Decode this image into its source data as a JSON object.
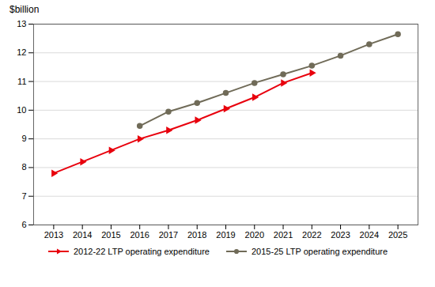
{
  "chart_data": {
    "type": "line",
    "ylabel": "$billion",
    "series": [
      {
        "name": "2012-22 LTP operating expenditure",
        "color": "#e8000d",
        "marker": "triangle-right",
        "x": [
          2013,
          2014,
          2015,
          2016,
          2017,
          2018,
          2019,
          2020,
          2021,
          2022
        ],
        "values": [
          7.8,
          8.2,
          8.6,
          9.0,
          9.3,
          9.65,
          10.05,
          10.45,
          10.95,
          11.3
        ]
      },
      {
        "name": "2015-25 LTP operating expenditure",
        "color": "#706b58",
        "marker": "circle",
        "x": [
          2016,
          2017,
          2018,
          2019,
          2020,
          2021,
          2022,
          2023,
          2024,
          2025
        ],
        "values": [
          9.45,
          9.95,
          10.25,
          10.6,
          10.95,
          11.25,
          11.55,
          11.9,
          12.3,
          12.65
        ]
      }
    ],
    "xlim": [
      2012.3,
      2025.7
    ],
    "xticks": [
      2013,
      2014,
      2015,
      2016,
      2017,
      2018,
      2019,
      2020,
      2021,
      2022,
      2023,
      2024,
      2025
    ],
    "ylim": [
      6,
      13
    ],
    "yticks": [
      6,
      7,
      8,
      9,
      10,
      11,
      12,
      13
    ],
    "grid": "y",
    "legend": "bottom"
  }
}
